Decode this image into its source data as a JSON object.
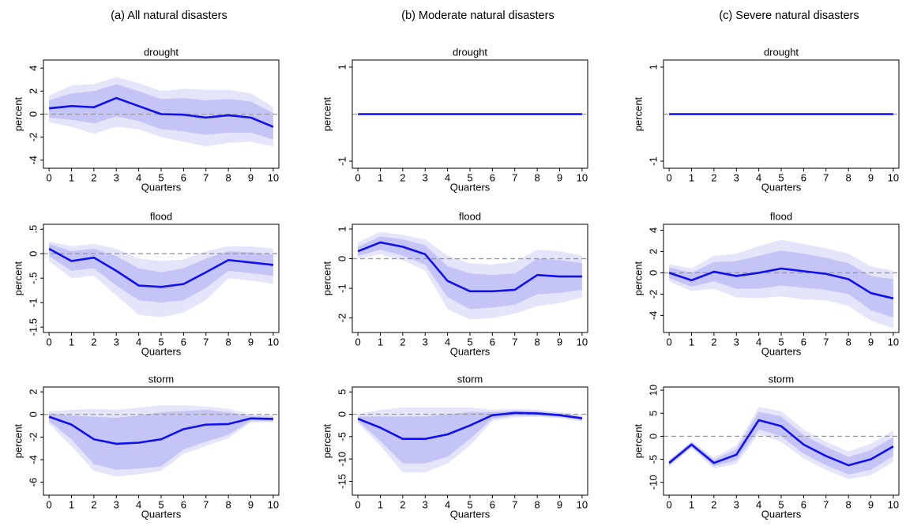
{
  "column_titles": [
    "(a) All natural disasters",
    "(b)  Moderate natural disasters",
    "(c) Severe natural disasters"
  ],
  "chart_data": [
    {
      "type": "line",
      "title": "drought",
      "xlabel": "Quarters",
      "ylabel": "percent",
      "x": [
        0,
        1,
        2,
        3,
        4,
        5,
        6,
        7,
        8,
        9,
        10
      ],
      "xlim": [
        -0.25,
        10.25
      ],
      "xticks": [
        0,
        1,
        2,
        3,
        4,
        5,
        6,
        7,
        8,
        9,
        10
      ],
      "ylim": [
        -4.7,
        4.7
      ],
      "yticks": [
        -4,
        -2,
        0,
        2,
        4
      ],
      "zero_line": true,
      "color": "#1010f0",
      "inner_color": "#c4c4f6",
      "outer_color": "#e4e4fb",
      "values": [
        0.5,
        0.7,
        0.6,
        1.4,
        0.7,
        0,
        -0.05,
        -0.3,
        -0.1,
        -0.3,
        -1.1
      ],
      "inner_lower": [
        -0.3,
        -0.5,
        -0.8,
        -0.2,
        -0.6,
        -1.3,
        -1.5,
        -1.8,
        -1.6,
        -1.6,
        -2.2
      ],
      "inner_upper": [
        1.2,
        1.8,
        2.0,
        2.6,
        2.0,
        1.3,
        1.4,
        1.2,
        1.3,
        1.1,
        0.1
      ],
      "outer_lower": [
        -0.7,
        -1.1,
        -1.7,
        -1.1,
        -1.3,
        -2.0,
        -2.4,
        -2.8,
        -2.5,
        -2.4,
        -2.8
      ],
      "outer_upper": [
        1.6,
        2.5,
        2.6,
        3.2,
        2.7,
        2.0,
        2.2,
        2.1,
        2.1,
        1.8,
        0.6
      ]
    },
    {
      "type": "line",
      "title": "drought",
      "xlabel": "Quarters",
      "ylabel": "percent",
      "x": [
        0,
        1,
        2,
        3,
        4,
        5,
        6,
        7,
        8,
        9,
        10
      ],
      "xlim": [
        -0.25,
        10.25
      ],
      "xticks": [
        0,
        1,
        2,
        3,
        4,
        5,
        6,
        7,
        8,
        9,
        10
      ],
      "ylim": [
        -1.15,
        1.15
      ],
      "yticks": [
        -1,
        1
      ],
      "zero_line": true,
      "color": "#1010f0",
      "values": [
        0,
        0,
        0,
        0,
        0,
        0,
        0,
        0,
        0,
        0,
        0
      ]
    },
    {
      "type": "line",
      "title": "drought",
      "xlabel": "Quarters",
      "ylabel": "percent",
      "x": [
        0,
        1,
        2,
        3,
        4,
        5,
        6,
        7,
        8,
        9,
        10
      ],
      "xlim": [
        -0.25,
        10.25
      ],
      "xticks": [
        0,
        1,
        2,
        3,
        4,
        5,
        6,
        7,
        8,
        9,
        10
      ],
      "ylim": [
        -1.15,
        1.15
      ],
      "yticks": [
        -1,
        1
      ],
      "zero_line": true,
      "color": "#1010f0",
      "values": [
        0,
        0,
        0,
        0,
        0,
        0,
        0,
        0,
        0,
        0,
        0
      ]
    },
    {
      "type": "line",
      "title": "flood",
      "xlabel": "Quarters",
      "ylabel": "percent",
      "x": [
        0,
        1,
        2,
        3,
        4,
        5,
        6,
        7,
        8,
        9,
        10
      ],
      "xlim": [
        -0.25,
        10.25
      ],
      "xticks": [
        0,
        1,
        2,
        3,
        4,
        5,
        6,
        7,
        8,
        9,
        10
      ],
      "ylim": [
        -1.61,
        0.6
      ],
      "yticks": [
        -1.5,
        -1,
        {
          "value": -0.5,
          "label": "-.5"
        },
        0,
        {
          "value": 0.5,
          "label": ".5"
        }
      ],
      "zero_line": true,
      "color": "#1010f0",
      "inner_color": "#c4c4f6",
      "outer_color": "#e4e4fb",
      "values": [
        0.1,
        -0.15,
        -0.08,
        -0.35,
        -0.65,
        -0.68,
        -0.62,
        -0.38,
        -0.13,
        -0.18,
        -0.23
      ],
      "inner_lower": [
        -0.05,
        -0.35,
        -0.3,
        -0.65,
        -0.95,
        -1.0,
        -0.95,
        -0.7,
        -0.35,
        -0.4,
        -0.45
      ],
      "inner_upper": [
        0.2,
        0.05,
        0.1,
        -0.05,
        -0.3,
        -0.38,
        -0.3,
        -0.1,
        0.05,
        0.03,
        -0.02
      ],
      "outer_lower": [
        -0.15,
        -0.5,
        -0.45,
        -0.85,
        -1.25,
        -1.3,
        -1.2,
        -0.95,
        -0.5,
        -0.55,
        -0.62
      ],
      "outer_upper": [
        0.25,
        0.15,
        0.2,
        0.1,
        -0.1,
        -0.15,
        -0.12,
        0.05,
        0.15,
        0.15,
        0.1
      ]
    },
    {
      "type": "line",
      "title": "flood",
      "xlabel": "Quarters",
      "ylabel": "percent",
      "x": [
        0,
        1,
        2,
        3,
        4,
        5,
        6,
        7,
        8,
        9,
        10
      ],
      "xlim": [
        -0.25,
        10.25
      ],
      "xticks": [
        0,
        1,
        2,
        3,
        4,
        5,
        6,
        7,
        8,
        9,
        10
      ],
      "ylim": [
        -2.49,
        1.16
      ],
      "yticks": [
        -2,
        -1,
        0,
        1
      ],
      "zero_line": true,
      "color": "#1010f0",
      "inner_color": "#c4c4f6",
      "outer_color": "#e4e4fb",
      "values": [
        0.25,
        0.55,
        0.4,
        0.15,
        -0.75,
        -1.1,
        -1.1,
        -1.05,
        -0.55,
        -0.6,
        -0.6
      ],
      "inner_lower": [
        0.1,
        0.3,
        0.1,
        -0.2,
        -1.3,
        -1.7,
        -1.65,
        -1.55,
        -1.2,
        -1.15,
        -1.05
      ],
      "inner_upper": [
        0.4,
        0.75,
        0.65,
        0.45,
        -0.25,
        -0.5,
        -0.55,
        -0.5,
        0,
        -0.05,
        -0.15
      ],
      "outer_lower": [
        0,
        0.15,
        -0.05,
        -0.4,
        -1.7,
        -2.05,
        -2.0,
        -1.85,
        -1.6,
        -1.5,
        -1.3
      ],
      "outer_upper": [
        0.55,
        0.9,
        0.8,
        0.65,
        0.1,
        -0.15,
        -0.2,
        -0.1,
        0.3,
        0.25,
        0.1
      ]
    },
    {
      "type": "line",
      "title": "flood",
      "xlabel": "Quarters",
      "ylabel": "percent",
      "x": [
        0,
        1,
        2,
        3,
        4,
        5,
        6,
        7,
        8,
        9,
        10
      ],
      "xlim": [
        -0.25,
        10.25
      ],
      "xticks": [
        0,
        1,
        2,
        3,
        4,
        5,
        6,
        7,
        8,
        9,
        10
      ],
      "ylim": [
        -5.6,
        4.55
      ],
      "yticks": [
        -4,
        -2,
        0,
        2,
        4
      ],
      "zero_line": true,
      "color": "#1010f0",
      "inner_color": "#c4c4f6",
      "outer_color": "#e4e4fb",
      "values": [
        0,
        -0.7,
        0.1,
        -0.3,
        0,
        0.4,
        0.15,
        -0.1,
        -0.6,
        -1.9,
        -2.4
      ],
      "inner_lower": [
        -0.5,
        -1.3,
        -0.8,
        -1.5,
        -1.5,
        -1.2,
        -1.4,
        -1.6,
        -2.0,
        -3.5,
        -4.2
      ],
      "inner_upper": [
        0.5,
        0,
        1.0,
        1.1,
        1.6,
        2.1,
        1.8,
        1.4,
        0.9,
        -0.3,
        -0.6
      ],
      "outer_lower": [
        -0.8,
        -1.7,
        -1.5,
        -2.3,
        -2.4,
        -2.2,
        -2.5,
        -2.6,
        -3.1,
        -4.5,
        -5.2
      ],
      "outer_upper": [
        0.8,
        0.4,
        1.6,
        1.8,
        2.5,
        3.1,
        2.7,
        2.3,
        1.8,
        0.6,
        0.2
      ]
    },
    {
      "type": "line",
      "title": "storm",
      "xlabel": "Quarters",
      "ylabel": "percent",
      "x": [
        0,
        1,
        2,
        3,
        4,
        5,
        6,
        7,
        8,
        9,
        10
      ],
      "xlim": [
        -0.25,
        10.25
      ],
      "xticks": [
        0,
        1,
        2,
        3,
        4,
        5,
        6,
        7,
        8,
        9,
        10
      ],
      "ylim": [
        -7.15,
        2.43
      ],
      "yticks": [
        -6,
        -4,
        -2,
        0,
        2
      ],
      "zero_line": true,
      "color": "#1010f0",
      "inner_color": "#c4c4f6",
      "outer_color": "#e4e4fb",
      "values": [
        -0.2,
        -0.9,
        -2.2,
        -2.6,
        -2.5,
        -2.2,
        -1.3,
        -0.9,
        -0.85,
        -0.35,
        -0.4
      ],
      "inner_lower": [
        -0.6,
        -2.2,
        -4.4,
        -4.9,
        -4.8,
        -4.6,
        -3.1,
        -2.4,
        -1.8,
        -0.55,
        -0.6
      ],
      "inner_upper": [
        0.1,
        -0.1,
        -0.2,
        -0.3,
        -0.1,
        0.2,
        0.3,
        0.4,
        0.2,
        -0.15,
        -0.2
      ],
      "outer_lower": [
        -0.8,
        -2.8,
        -5.0,
        -5.5,
        -5.3,
        -5.0,
        -3.5,
        -2.8,
        -2.1,
        -0.7,
        -0.7
      ],
      "outer_upper": [
        0.3,
        0.4,
        0.5,
        0.4,
        0.6,
        0.8,
        0.8,
        0.7,
        0.5,
        0,
        0
      ]
    },
    {
      "type": "line",
      "title": "storm",
      "xlabel": "Quarters",
      "ylabel": "percent",
      "x": [
        0,
        1,
        2,
        3,
        4,
        5,
        6,
        7,
        8,
        9,
        10
      ],
      "xlim": [
        -0.25,
        10.25
      ],
      "xticks": [
        0,
        1,
        2,
        3,
        4,
        5,
        6,
        7,
        8,
        9,
        10
      ],
      "ylim": [
        -18.1,
        6.1
      ],
      "yticks": [
        -15,
        -10,
        -5,
        0,
        5
      ],
      "zero_line": true,
      "color": "#1010f0",
      "inner_color": "#c4c4f6",
      "outer_color": "#e4e4fb",
      "values": [
        -1,
        -3,
        -5.5,
        -5.5,
        -4.5,
        -2.5,
        -0.2,
        0.3,
        0.2,
        -0.2,
        -0.9
      ],
      "inner_lower": [
        -1.5,
        -6,
        -11,
        -11,
        -9.5,
        -5.5,
        -1.0,
        -0.3,
        -0.3,
        -0.6,
        -1.3
      ],
      "inner_upper": [
        -0.5,
        -0.5,
        -0.5,
        -0.5,
        0,
        0.5,
        0.5,
        0.8,
        0.7,
        0.2,
        -0.5
      ],
      "outer_lower": [
        -2,
        -7,
        -13,
        -13,
        -11,
        -7,
        -1.5,
        -0.7,
        -0.6,
        -0.9,
        -1.6
      ],
      "outer_upper": [
        0,
        1,
        1.5,
        1.5,
        1.5,
        1.5,
        1,
        1.2,
        1,
        0.5,
        -0.2
      ]
    },
    {
      "type": "line",
      "title": "storm",
      "xlabel": "Quarters",
      "ylabel": "percent",
      "x": [
        0,
        1,
        2,
        3,
        4,
        5,
        6,
        7,
        8,
        9,
        10
      ],
      "xlim": [
        -0.25,
        10.25
      ],
      "xticks": [
        0,
        1,
        2,
        3,
        4,
        5,
        6,
        7,
        8,
        9,
        10
      ],
      "ylim": [
        -12.8,
        10.7
      ],
      "yticks": [
        -10,
        -5,
        0,
        5,
        10
      ],
      "zero_line": true,
      "color": "#1010f0",
      "inner_color": "#c4c4f6",
      "outer_color": "#e4e4fb",
      "values": [
        -5.8,
        -1.8,
        -5.8,
        -4,
        3.5,
        2.2,
        -1.8,
        -4.3,
        -6.3,
        -5,
        -2.2
      ],
      "inner_lower": [
        -6.3,
        -2.3,
        -6.5,
        -5.2,
        1.5,
        0,
        -3.8,
        -6.3,
        -8.3,
        -7.3,
        -4.3
      ],
      "inner_upper": [
        -5.3,
        -1.3,
        -5.1,
        -2.8,
        5.3,
        4.3,
        0.3,
        -2.3,
        -4.5,
        -3,
        -0.2
      ],
      "outer_lower": [
        -6.6,
        -2.6,
        -7,
        -6,
        0.5,
        -1.2,
        -4.8,
        -7.3,
        -9.3,
        -8.5,
        -5.5
      ],
      "outer_upper": [
        -5,
        -1,
        -4.6,
        -2,
        6.3,
        5.5,
        1.5,
        -1.2,
        -3.3,
        -1.6,
        1.2
      ]
    }
  ]
}
